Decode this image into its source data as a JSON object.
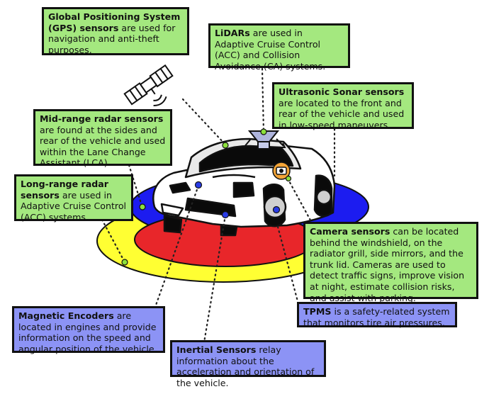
{
  "colors": {
    "green_box": "#a4e87f",
    "purple_box": "#8c93f5",
    "ellipse_yellow": "#ffff33",
    "ellipse_blue": "#1c1cf0",
    "ellipse_red": "#e8262a",
    "sensor_dot_green": "#8ce03c",
    "sensor_dot_blue": "#2a3ce6"
  },
  "icons": [
    "satellite-icon",
    "lidar-sensor-icon",
    "camera-icon",
    "car-illustration"
  ],
  "boxes": {
    "gps": {
      "bold": "Global Positioning System (GPS) sensors",
      "rest": " are used for navigation and anti-theft purposes."
    },
    "lidar": {
      "bold": "LiDARs",
      "rest": " are used in Adaptive Cruise Control (ACC) and Collision Avoidance (CA) systems."
    },
    "ultrasonic": {
      "bold": "Ultrasonic Sonar sensors",
      "rest": " are located to the front and rear of the vehicle and used in low-speed maneuvers."
    },
    "midrange": {
      "bold": "Mid-range radar sensors",
      "rest": " are found at the sides and rear of the vehicle and used within the Lane Change Assistant (LCA)."
    },
    "longrange": {
      "bold": "Long-range radar sensors",
      "rest": " are used in Adaptive Cruise Control (ACC) systems."
    },
    "camera": {
      "bold": "Camera sensors",
      "rest": " can be located behind the windshield, on the radiator grill, side mirrors, and the trunk lid. Cameras are used to detect traffic signs, improve vision at night, estimate collision risks, and assist with parking."
    },
    "magnetic": {
      "bold": "Magnetic Encoders",
      "rest": " are located in engines and provide information on the speed and angular position of the vehicle."
    },
    "tpms": {
      "bold": "TPMS",
      "rest": " is a safety-related system that monitors tire air pressures."
    },
    "inertial": {
      "bold": "Inertial Sensors",
      "rest": " relay information about the acceleration and orientation of the vehicle."
    }
  }
}
